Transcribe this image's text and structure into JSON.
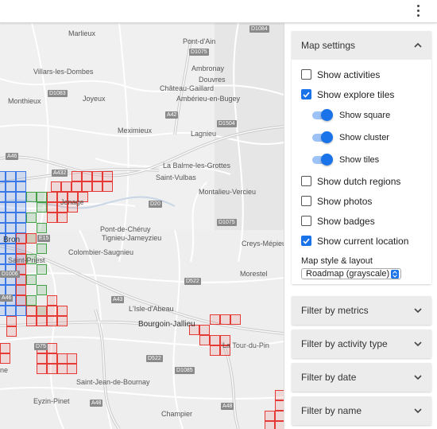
{
  "topbar": {
    "menu_icon": "more-vert-icon"
  },
  "map": {
    "places": [
      {
        "name": "Marlieux"
      },
      {
        "name": "Pont-d'Ain"
      },
      {
        "name": "Villars-les-Dombes"
      },
      {
        "name": "Ambronay"
      },
      {
        "name": "Douvres"
      },
      {
        "name": "Château-Gaillard"
      },
      {
        "name": "Ambérieu-en-Bugey"
      },
      {
        "name": "Monthieux"
      },
      {
        "name": "Joyeux"
      },
      {
        "name": "Meximieux"
      },
      {
        "name": "Lagnieu"
      },
      {
        "name": "La Balme-les-Grottes"
      },
      {
        "name": "Saint-Vulbas"
      },
      {
        "name": "Montalieu-Vercieu"
      },
      {
        "name": "Jonage"
      },
      {
        "name": "Pont-de-Chéruy"
      },
      {
        "name": "Tignieu-Jameyzieu"
      },
      {
        "name": "Bron"
      },
      {
        "name": "Colombier-Saugnieu"
      },
      {
        "name": "Saint-Priest"
      },
      {
        "name": "Creys-Mépieu"
      },
      {
        "name": "Morestel"
      },
      {
        "name": "L'Isle-d'Abeau"
      },
      {
        "name": "Bourgoin-Jallieu"
      },
      {
        "name": "La Tour-du-Pin"
      },
      {
        "name": "Saint-Jean-de-Bournay"
      },
      {
        "name": "Eyzin-Pinet"
      },
      {
        "name": "Champier"
      },
      {
        "name": "ne"
      }
    ],
    "roads": [
      "D1084",
      "D1075",
      "D1083",
      "D1504",
      "A42",
      "A46",
      "A432",
      "D20",
      "D1075",
      "D522",
      "A43",
      "D75",
      "D522",
      "D1085",
      "A48",
      "E15",
      "D1006",
      "A48",
      "A46"
    ]
  },
  "panel": {
    "map_settings": {
      "title": "Map settings",
      "options": [
        {
          "label": "Show activities",
          "checked": false
        },
        {
          "label": "Show explore tiles",
          "checked": true
        }
      ],
      "toggles": [
        {
          "label": "Show square",
          "on": true
        },
        {
          "label": "Show cluster",
          "on": true
        },
        {
          "label": "Show tiles",
          "on": true
        }
      ],
      "options2": [
        {
          "label": "Show dutch regions",
          "checked": false
        },
        {
          "label": "Show photos",
          "checked": false
        },
        {
          "label": "Show badges",
          "checked": false
        },
        {
          "label": "Show current location",
          "checked": true
        }
      ],
      "style_label": "Map style & layout",
      "style_value": "Roadmap (grayscale)"
    },
    "filters": [
      {
        "title": "Filter by metrics"
      },
      {
        "title": "Filter by activity type"
      },
      {
        "title": "Filter by date"
      },
      {
        "title": "Filter by name"
      }
    ]
  },
  "colors": {
    "accent": "#1a73e8",
    "tile_red": "#e53935",
    "tile_blue": "#3b78e7",
    "tile_green": "#43a047"
  }
}
